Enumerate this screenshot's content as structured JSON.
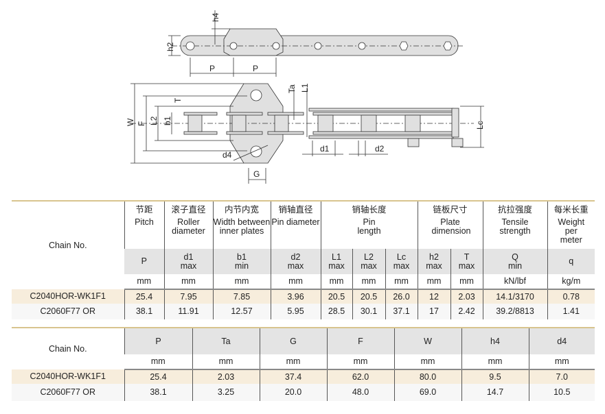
{
  "drawing": {
    "labels": {
      "h4": "h4",
      "h2": "h2",
      "P1": "P",
      "P2": "P",
      "W": "W",
      "F": "F",
      "L2": "L2",
      "b1": "b1",
      "T": "T",
      "Ta": "Ta",
      "L1": "L1",
      "d4": "d4",
      "G": "G",
      "d1": "d1",
      "d2": "d2",
      "Lc": "Lc"
    },
    "fill": "#e0e0e0"
  },
  "table1": {
    "chain_no": "Chain No.",
    "headers": [
      {
        "cn": "节距",
        "en": "Pitch"
      },
      {
        "cn": "滚子直径",
        "en": "Roller diameter"
      },
      {
        "cn": "内节内宽",
        "en": "Width between inner plates"
      },
      {
        "cn": "销轴直径",
        "en": "Pin diameter"
      },
      {
        "cn": "销轴长度",
        "en": "Pin length"
      },
      {
        "cn": "链板尺寸",
        "en": "Plate dimension"
      },
      {
        "cn": "抗拉强度",
        "en": "Tensile strength"
      },
      {
        "cn": "每米长重",
        "en": "Weight per meter"
      }
    ],
    "symbols": [
      {
        "s": "P",
        "q": ""
      },
      {
        "s": "d1",
        "q": "max"
      },
      {
        "s": "b1",
        "q": "min"
      },
      {
        "s": "d2",
        "q": "max"
      },
      {
        "s": "L1",
        "q": "max"
      },
      {
        "s": "L2",
        "q": "max"
      },
      {
        "s": "Lc",
        "q": "max"
      },
      {
        "s": "h2",
        "q": "max"
      },
      {
        "s": "T",
        "q": "max"
      },
      {
        "s": "Q",
        "q": "min"
      },
      {
        "s": "q",
        "q": ""
      }
    ],
    "units": [
      "mm",
      "mm",
      "mm",
      "mm",
      "mm",
      "mm",
      "mm",
      "mm",
      "mm",
      "kN/lbf",
      "kg/m"
    ],
    "rows": [
      [
        "C2040HOR-WK1F1",
        "25.4",
        "7.95",
        "7.85",
        "3.96",
        "20.5",
        "20.5",
        "26.0",
        "12",
        "2.03",
        "14.1/3170",
        "0.78"
      ],
      [
        "C2060F77 OR",
        "38.1",
        "11.91",
        "12.57",
        "5.95",
        "28.5",
        "30.1",
        "37.1",
        "17",
        "2.42",
        "39.2/8813",
        "1.41"
      ]
    ]
  },
  "table2": {
    "chain_no": "Chain No.",
    "symbols": [
      "P",
      "Ta",
      "G",
      "F",
      "W",
      "h4",
      "d4"
    ],
    "units": [
      "mm",
      "mm",
      "mm",
      "mm",
      "mm",
      "mm",
      "mm"
    ],
    "rows": [
      [
        "C2040HOR-WK1F1",
        "25.4",
        "2.03",
        "37.4",
        "62.0",
        "80.0",
        "9.5",
        "7.0"
      ],
      [
        "C2060F77 OR",
        "38.1",
        "3.25",
        "20.0",
        "48.0",
        "69.0",
        "14.7",
        "10.5"
      ]
    ]
  },
  "colors": {
    "accent_line": "#d8c48e",
    "header_gray": "#e4e4e4",
    "row_highlight": "#f7eddc"
  }
}
